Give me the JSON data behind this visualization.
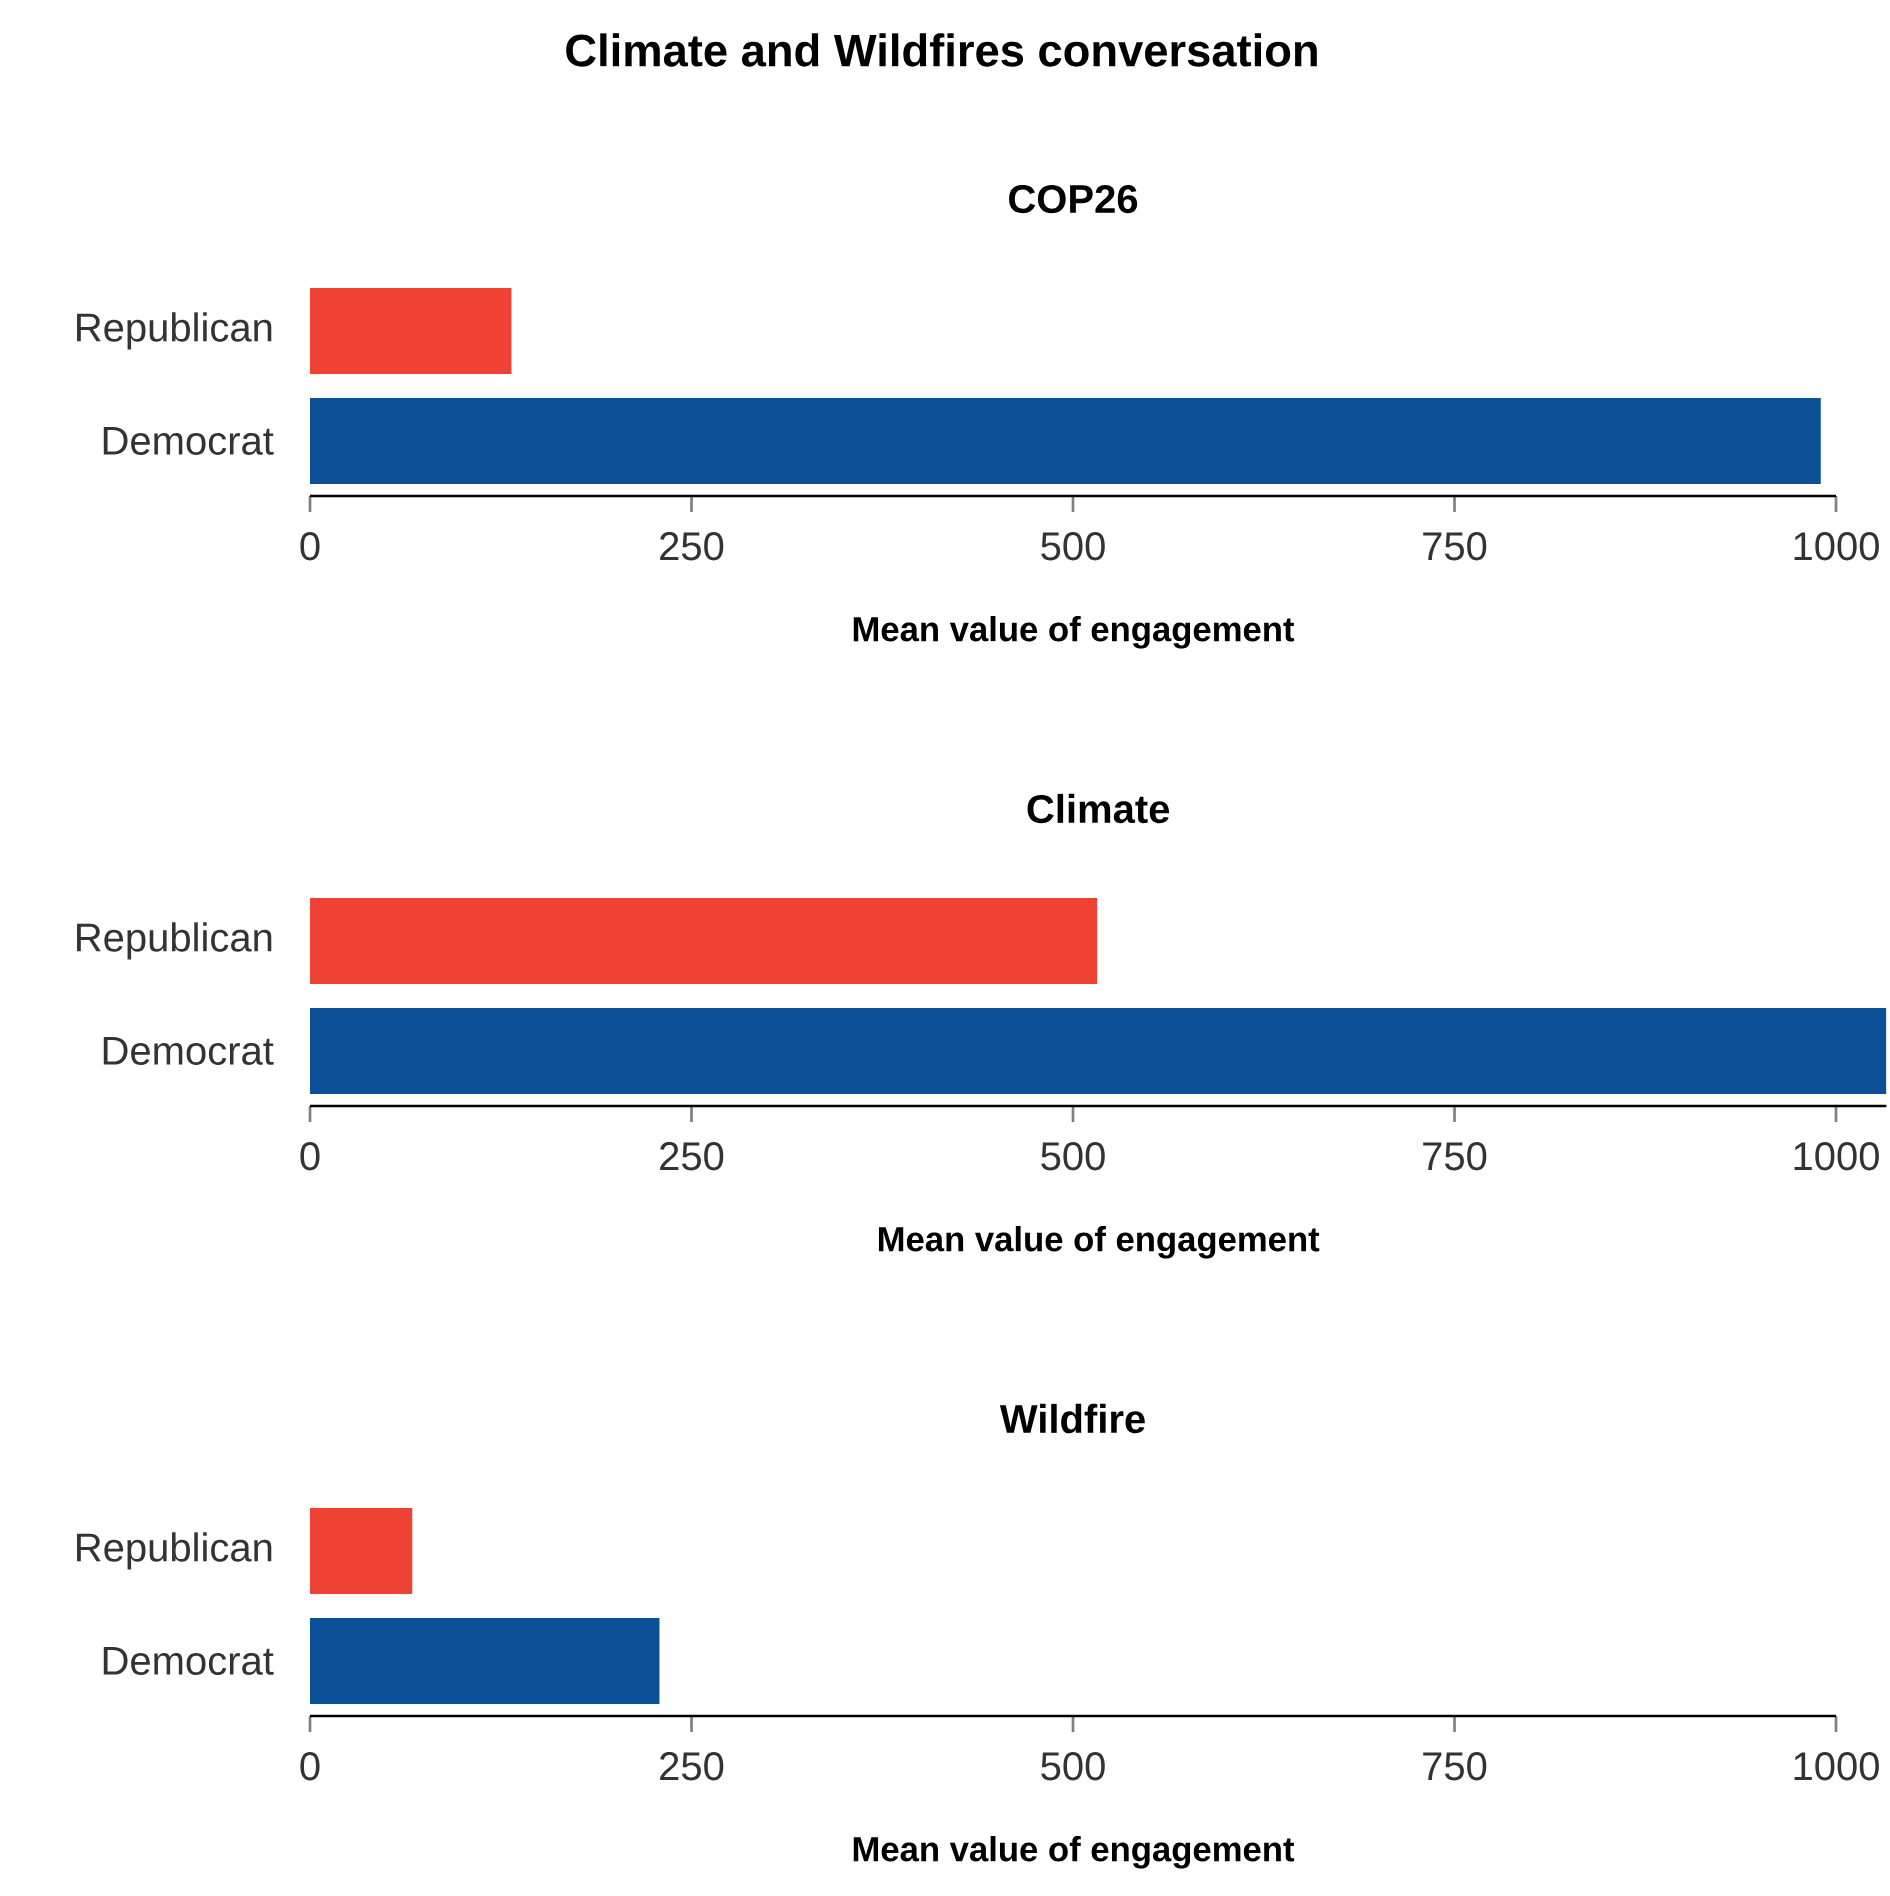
{
  "chart_data": [
    {
      "type": "bar",
      "orientation": "horizontal",
      "title": "Climate and Wildfires conversation",
      "subtitle": "COP26",
      "categories": [
        "Republican",
        "Democrat"
      ],
      "values": [
        132,
        990
      ],
      "colors": [
        "#ef4134",
        "#0b4f97"
      ],
      "xlim": [
        0,
        1000
      ],
      "xticks": [
        0,
        250,
        500,
        750,
        1000
      ],
      "xlabel": "Mean value of engagement"
    },
    {
      "type": "bar",
      "orientation": "horizontal",
      "subtitle": "Climate",
      "categories": [
        "Republican",
        "Democrat"
      ],
      "values": [
        516,
        1033
      ],
      "colors": [
        "#ef4134",
        "#0b4f97"
      ],
      "xlim": [
        0,
        1033
      ],
      "xticks": [
        0,
        250,
        500,
        750,
        1000
      ],
      "xlabel": "Mean value of engagement"
    },
    {
      "type": "bar",
      "orientation": "horizontal",
      "subtitle": "Wildfire",
      "categories": [
        "Republican",
        "Democrat"
      ],
      "values": [
        67,
        229
      ],
      "colors": [
        "#ef4134",
        "#0b4f97"
      ],
      "xlim": [
        0,
        1000
      ],
      "xticks": [
        0,
        250,
        500,
        750,
        1000
      ],
      "xlabel": "Mean value of engagement"
    }
  ]
}
